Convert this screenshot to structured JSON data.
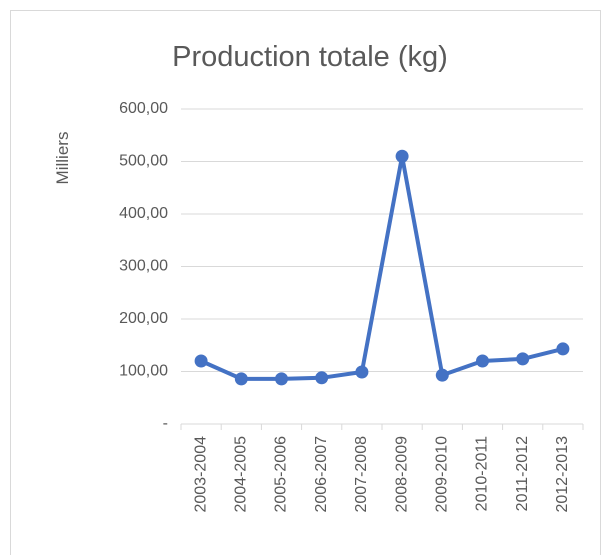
{
  "chart_data": {
    "type": "line",
    "title": "Production totale (kg)",
    "y_label": "Milliers",
    "categories": [
      "2003-2004",
      "2004-2005",
      "2005-2006",
      "2006-2007",
      "2007-2008",
      "2008-2009",
      "2009-2010",
      "2010-2011",
      "2011-2012",
      "2012-2013"
    ],
    "values": [
      120,
      86,
      86,
      88,
      99,
      510,
      93,
      120,
      124,
      143
    ],
    "color": "#4472c4",
    "ylim": [
      0,
      600
    ],
    "yticks": [
      {
        "value": 0,
        "label": "-"
      },
      {
        "value": 100,
        "label": "100,00"
      },
      {
        "value": 200,
        "label": "200,00"
      },
      {
        "value": 300,
        "label": "300,00"
      },
      {
        "value": 400,
        "label": "400,00"
      },
      {
        "value": 500,
        "label": "500,00"
      },
      {
        "value": 600,
        "label": "600,00"
      }
    ],
    "grid": true
  }
}
